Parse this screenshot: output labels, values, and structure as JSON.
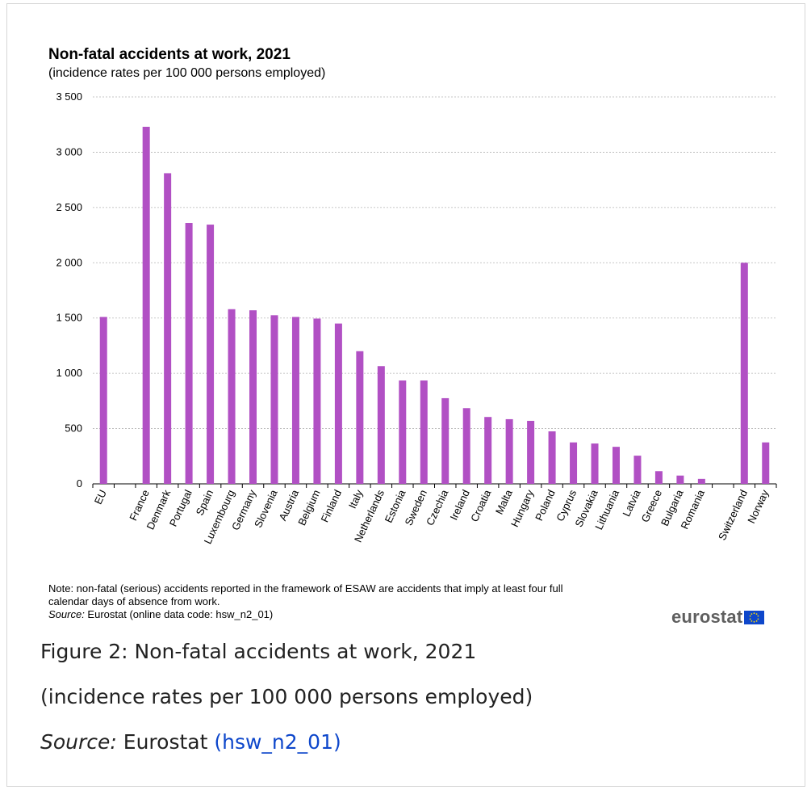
{
  "chart_data": {
    "type": "bar",
    "title": "Non-fatal accidents at work, 2021",
    "subtitle": "(incidence rates per 100 000 persons employed)",
    "categories": [
      "EU",
      "",
      "France",
      "Denmark",
      "Portugal",
      "Spain",
      "Luxembourg",
      "Germany",
      "Slovenia",
      "Austria",
      "Belgium",
      "Finland",
      "Italy",
      "Netherlands",
      "Estonia",
      "Sweden",
      "Czechia",
      "Ireland",
      "Croatia",
      "Malta",
      "Hungary",
      "Poland",
      "Cyprus",
      "Slovakia",
      "Lithuania",
      "Latvia",
      "Greece",
      "Bulgaria",
      "Romania",
      "",
      "Switzerland",
      "Norway"
    ],
    "values": [
      1510,
      null,
      3230,
      2810,
      2360,
      2345,
      1580,
      1570,
      1525,
      1510,
      1495,
      1450,
      1200,
      1065,
      935,
      935,
      775,
      685,
      605,
      585,
      570,
      475,
      375,
      365,
      335,
      255,
      115,
      75,
      45,
      null,
      2000,
      375
    ],
    "ylim": [
      0,
      3500
    ],
    "yticks": [
      0,
      500,
      1000,
      1500,
      2000,
      2500,
      3000,
      3500
    ],
    "ytick_labels": [
      "0",
      "500",
      "1 000",
      "1 500",
      "2 000",
      "2 500",
      "3 000",
      "3 500"
    ],
    "grid": true,
    "bar_color": "#b150c4"
  },
  "note": {
    "text": "Note: non-fatal (serious) accidents reported in the framework of ESAW are accidents that imply at least four full calendar days of absence from work.",
    "source_label": "Source:",
    "source_text": " Eurostat (online data code: hsw_n2_01)"
  },
  "logo": {
    "text": "eurostat"
  },
  "caption": {
    "figure": "Figure 2: Non-fatal accidents at work, 2021",
    "subtitle": "(incidence rates per 100 000 persons employed)",
    "source_label": "Source:",
    "source_name": " Eurostat ",
    "source_link": "(hsw_n2_01)"
  }
}
